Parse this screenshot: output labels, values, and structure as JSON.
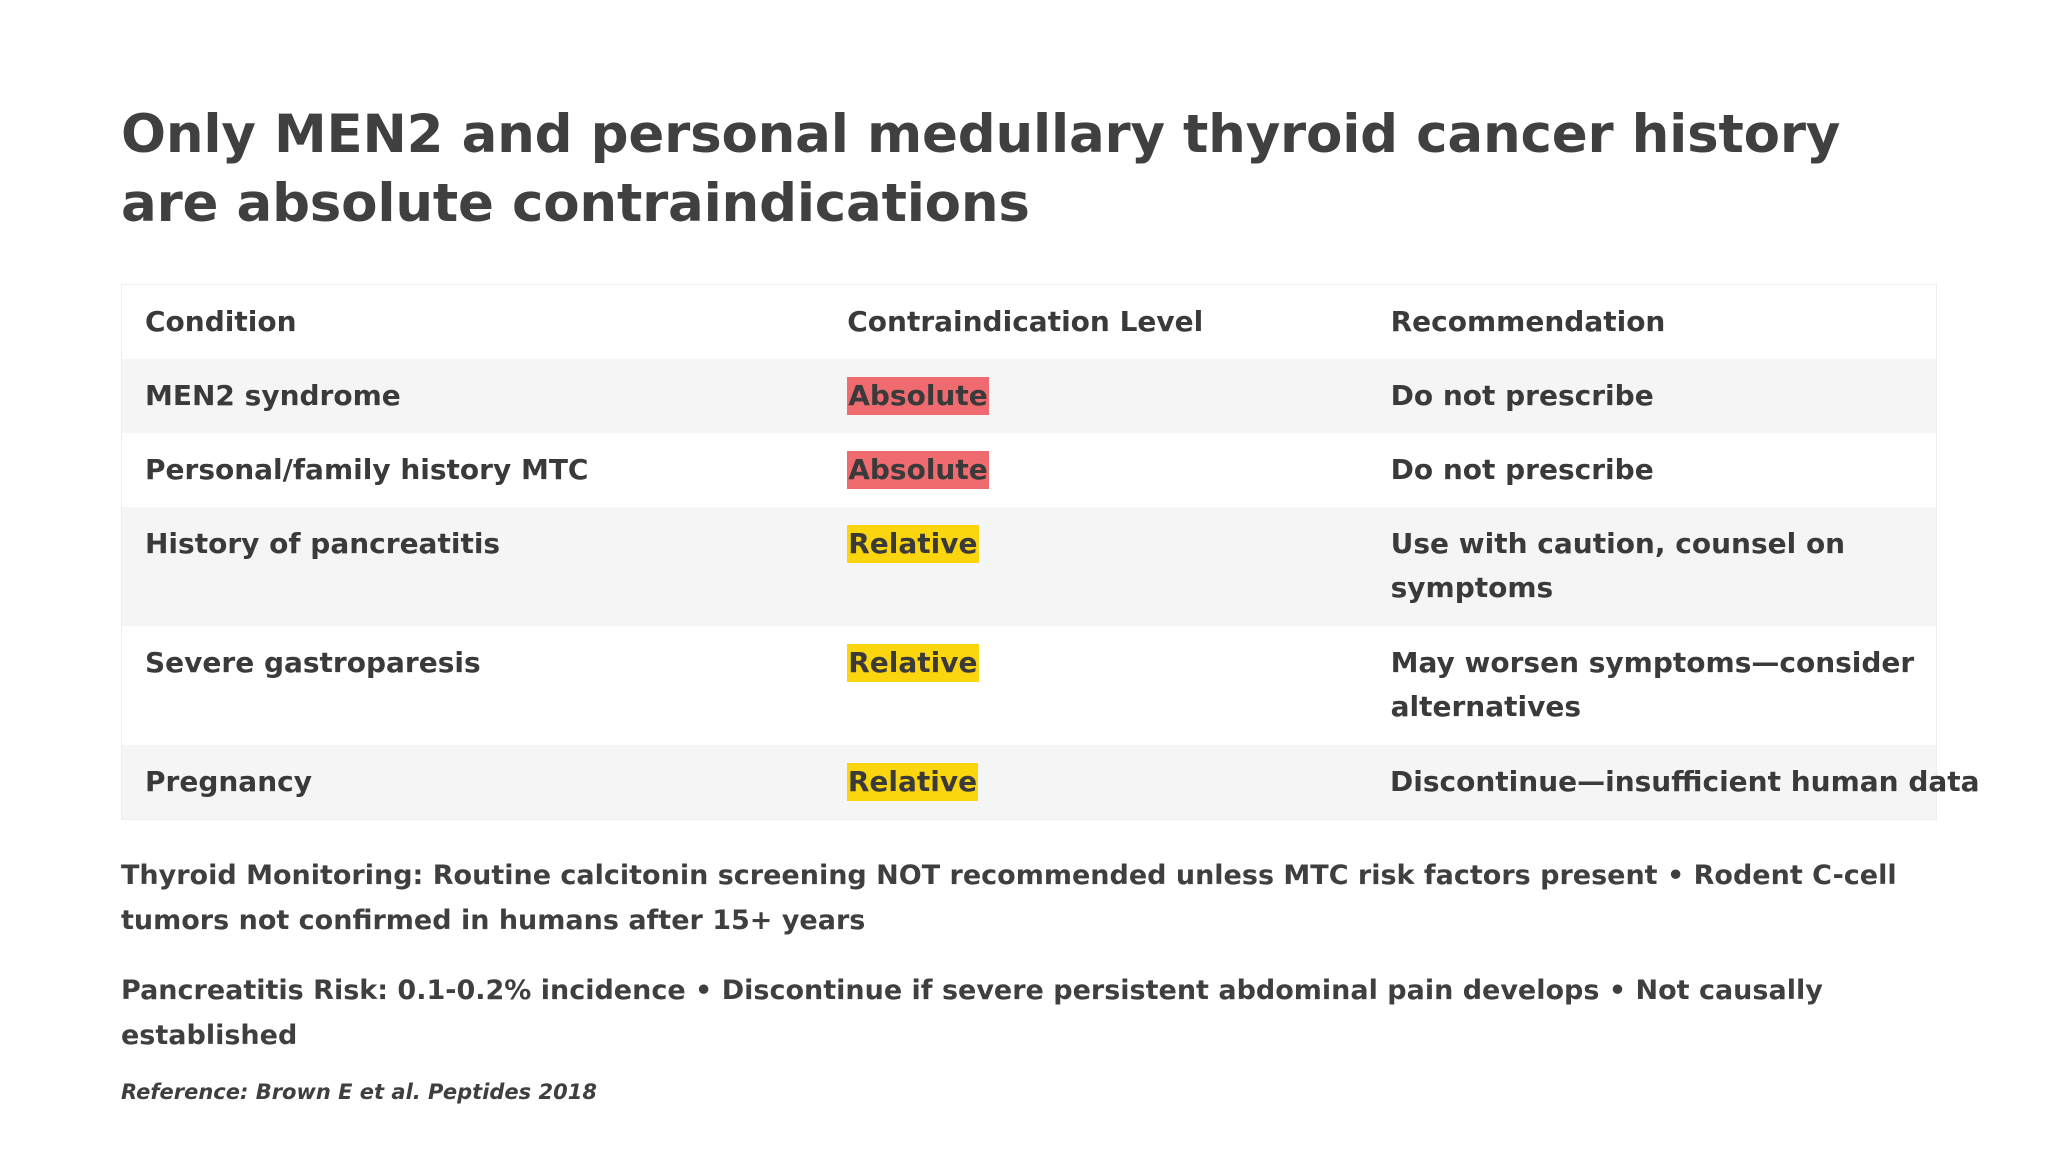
{
  "title": "Only MEN2 and personal medullary thyroid cancer history are absolute contraindications",
  "colors": {
    "absolute_badge": "#f06b70",
    "relative_badge": "#fbd60f",
    "row_shade": "#f5f5f5",
    "text": "#3f3f3f"
  },
  "table": {
    "headers": [
      "Condition",
      "Contraindication Level",
      "Recommendation"
    ],
    "rows": [
      {
        "condition": "MEN2 syndrome",
        "level": "Absolute",
        "recommendation": "Do not prescribe"
      },
      {
        "condition": "Personal/family history MTC",
        "level": "Absolute",
        "recommendation": "Do not prescribe"
      },
      {
        "condition": "History of pancreatitis",
        "level": "Relative",
        "recommendation": "Use with caution, counsel on symptoms"
      },
      {
        "condition": "Severe gastroparesis",
        "level": "Relative",
        "recommendation": "May worsen symptoms—consider alternatives"
      },
      {
        "condition": "Pregnancy",
        "level": "Relative",
        "recommendation": "Discontinue—insufficient human data"
      }
    ]
  },
  "notes": {
    "thyroid": "Thyroid Monitoring: Routine calcitonin screening NOT recommended unless MTC risk factors present • Rodent C-cell tumors not confirmed in humans after 15+ years",
    "pancreatitis": "Pancreatitis Risk: 0.1-0.2% incidence • Discontinue if severe persistent abdominal pain develops • Not causally established"
  },
  "reference": "Reference: Brown E et al. Peptides 2018"
}
